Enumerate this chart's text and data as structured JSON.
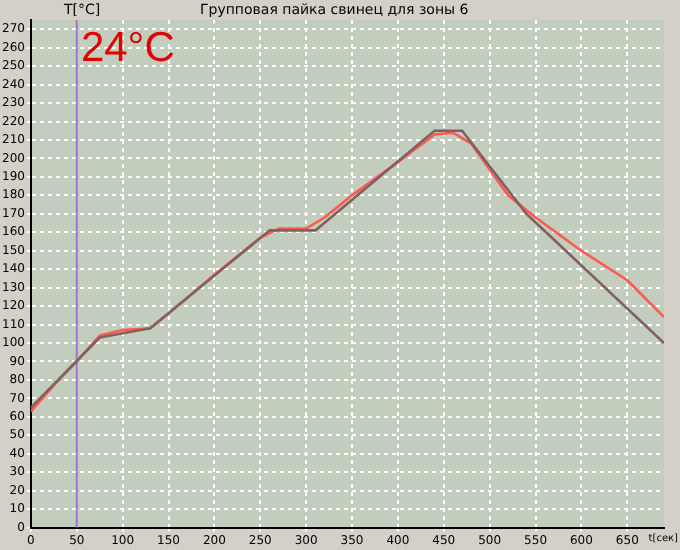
{
  "chart_data": {
    "type": "line",
    "title": "Групповая пайка свинец для зоны 6",
    "ylabel": "T[°C]",
    "xlabel": "t[сек]",
    "annotations": [
      "24°C"
    ],
    "xlim": [
      0,
      690
    ],
    "xticks": [
      0,
      50,
      100,
      150,
      200,
      250,
      300,
      350,
      400,
      450,
      500,
      550,
      600,
      650
    ],
    "ylim": [
      0,
      275
    ],
    "yticks": [
      0,
      10,
      20,
      30,
      40,
      50,
      60,
      70,
      80,
      90,
      100,
      110,
      120,
      130,
      140,
      150,
      160,
      170,
      180,
      190,
      200,
      210,
      220,
      230,
      240,
      250,
      260,
      270
    ],
    "grid": true,
    "legend": false,
    "marker": "none",
    "line_style": "solid",
    "ref_lines": [
      {
        "axis": "x",
        "value": 50,
        "color": "#a070d0"
      }
    ],
    "series": [
      {
        "color": "#806060",
        "x": [
          0,
          75,
          130,
          260,
          310,
          440,
          470,
          540,
          690
        ],
        "values": [
          65,
          103,
          108,
          161,
          161,
          215,
          215,
          170,
          100
        ]
      },
      {
        "color": "#ff5a50",
        "x": [
          0,
          25,
          50,
          75,
          100,
          130,
          150,
          200,
          225,
          250,
          270,
          300,
          320,
          350,
          400,
          440,
          460,
          480,
          520,
          550,
          600,
          650,
          690
        ],
        "values": [
          63,
          77,
          90,
          104,
          107,
          108,
          116,
          137,
          147,
          157,
          162,
          162,
          168,
          180,
          198,
          213,
          214,
          208,
          180,
          168,
          150,
          134,
          114
        ]
      }
    ]
  }
}
